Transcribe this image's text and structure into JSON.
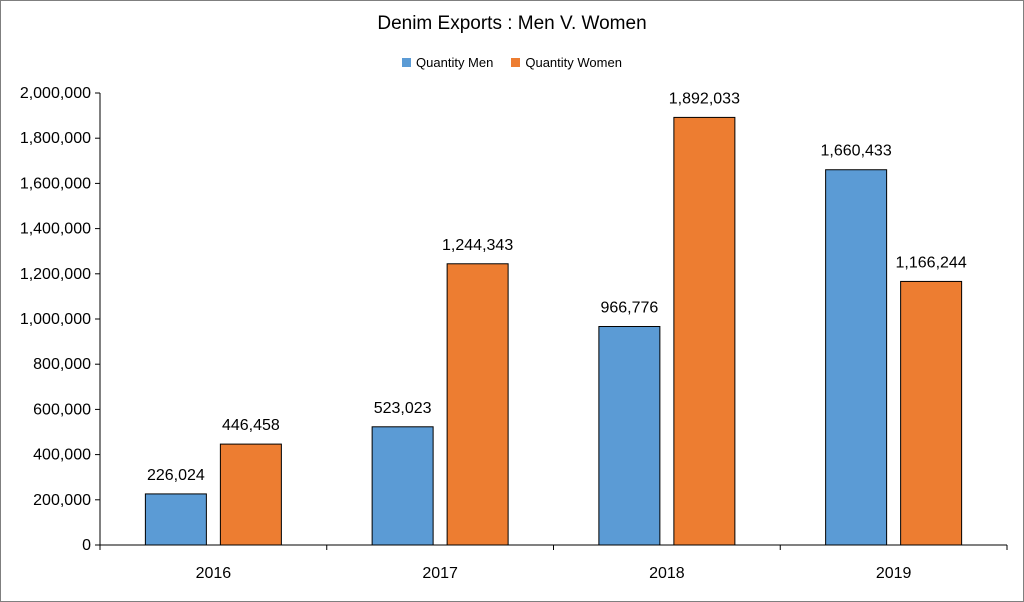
{
  "chart_data": {
    "type": "bar",
    "title": "Denim Exports : Men V. Women",
    "categories": [
      "2016",
      "2017",
      "2018",
      "2019"
    ],
    "series": [
      {
        "name": "Quantity Men",
        "color": "#5b9bd5",
        "values": [
          226024,
          523023,
          966776,
          1660433
        ],
        "labels": [
          "226,024",
          "523,023",
          "966,776",
          "1,660,433"
        ]
      },
      {
        "name": "Quantity Women",
        "color": "#ed7d31",
        "values": [
          446458,
          1244343,
          1892033,
          1166244
        ],
        "labels": [
          "446,458",
          "1,244,343",
          "1,892,033",
          "1,166,244"
        ]
      }
    ],
    "ylim": [
      0,
      2000000
    ],
    "yticks": [
      0,
      200000,
      400000,
      600000,
      800000,
      1000000,
      1200000,
      1400000,
      1600000,
      1800000,
      2000000
    ],
    "ytick_labels": [
      "0",
      "200,000",
      "400,000",
      "600,000",
      "800,000",
      "1,000,000",
      "1,200,000",
      "1,400,000",
      "1,600,000",
      "1,800,000",
      "2,000,000"
    ],
    "grid": false,
    "legend_position": "top"
  }
}
